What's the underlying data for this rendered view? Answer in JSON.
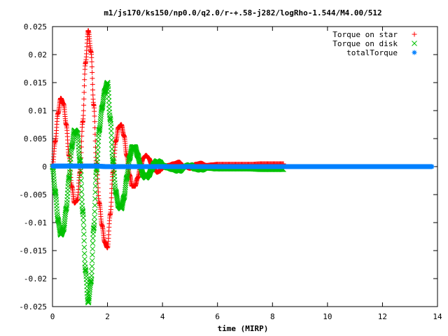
{
  "chart_data": {
    "type": "scatter",
    "title": "m1/js170/ks150/np0.0/q2.0/r-+.58-j282/logRho-1.544/M4.00/512",
    "xlabel": "time (MIRP)",
    "ylabel": "",
    "xlim": [
      0,
      14
    ],
    "ylim": [
      -0.025,
      0.025
    ],
    "x_ticks": [
      "0",
      "2",
      "4",
      "6",
      "8",
      "10",
      "12",
      "14"
    ],
    "y_ticks": [
      "0.025",
      "0.02",
      "0.015",
      "0.01",
      "0.005",
      "0",
      "-0.005",
      "-0.01",
      "-0.015",
      "-0.02",
      "-0.025"
    ],
    "legend_position": "top-right",
    "grid": false,
    "series": [
      {
        "name": "Torque on star",
        "marker": "+",
        "color": "#ff0000",
        "x": [
          0.0,
          0.1,
          0.2,
          0.3,
          0.4,
          0.5,
          0.6,
          0.7,
          0.8,
          0.9,
          1.0,
          1.1,
          1.2,
          1.3,
          1.4,
          1.5,
          1.6,
          1.7,
          1.8,
          1.9,
          2.0,
          2.1,
          2.2,
          2.3,
          2.4,
          2.5,
          2.6,
          2.7,
          2.8,
          2.9,
          3.0,
          3.1,
          3.2,
          3.3,
          3.4,
          3.5,
          3.6,
          3.7,
          3.8,
          3.9,
          4.0,
          4.2,
          4.4,
          4.6,
          4.8,
          5.0,
          5.2,
          5.4,
          5.6,
          5.8,
          6.0,
          6.4,
          6.8,
          7.2,
          7.6,
          8.0,
          8.4
        ],
        "y": [
          0.0,
          0.0045,
          0.0095,
          0.0122,
          0.0112,
          0.0075,
          0.002,
          -0.0035,
          -0.0065,
          -0.006,
          -0.001,
          0.008,
          0.0185,
          0.0243,
          0.0205,
          0.011,
          0.0005,
          -0.0065,
          -0.0105,
          -0.0135,
          -0.0145,
          -0.0085,
          -0.001,
          0.0045,
          0.007,
          0.0075,
          0.0055,
          0.002,
          -0.0015,
          -0.0035,
          -0.0035,
          -0.002,
          0.0,
          0.0015,
          0.002,
          0.0015,
          0.0005,
          -0.0005,
          -0.001,
          -0.0008,
          -0.0002,
          0.0002,
          0.0005,
          0.0008,
          0.0,
          -0.0003,
          0.0004,
          0.0006,
          0.0002,
          0.0003,
          0.0004,
          0.0004,
          0.0004,
          0.0004,
          0.0005,
          0.0005,
          0.0005
        ]
      },
      {
        "name": "Torque on disk",
        "marker": "x",
        "color": "#00c000",
        "x": [
          0.0,
          0.1,
          0.2,
          0.3,
          0.4,
          0.5,
          0.6,
          0.7,
          0.8,
          0.9,
          1.0,
          1.1,
          1.2,
          1.3,
          1.4,
          1.5,
          1.6,
          1.7,
          1.8,
          1.9,
          2.0,
          2.1,
          2.2,
          2.3,
          2.4,
          2.5,
          2.6,
          2.7,
          2.8,
          2.9,
          3.0,
          3.1,
          3.2,
          3.3,
          3.4,
          3.5,
          3.6,
          3.7,
          3.8,
          3.9,
          4.0,
          4.2,
          4.4,
          4.6,
          4.8,
          5.0,
          5.2,
          5.4,
          5.6,
          5.8,
          6.0,
          6.4,
          6.8,
          7.2,
          7.6,
          8.0,
          8.4
        ],
        "y": [
          0.0,
          -0.0045,
          -0.0095,
          -0.0122,
          -0.0112,
          -0.0075,
          -0.002,
          0.0035,
          0.0065,
          0.006,
          0.001,
          -0.008,
          -0.0185,
          -0.0243,
          -0.0205,
          -0.011,
          -0.0005,
          0.0065,
          0.0105,
          0.0135,
          0.015,
          0.0085,
          0.001,
          -0.0045,
          -0.007,
          -0.0075,
          -0.0055,
          -0.002,
          0.0015,
          0.0035,
          0.0035,
          0.002,
          0.0,
          -0.0015,
          -0.002,
          -0.0015,
          -0.0005,
          0.0005,
          0.001,
          0.0008,
          0.0002,
          -0.0002,
          -0.0005,
          -0.0008,
          0.0,
          0.0003,
          -0.0004,
          -0.0006,
          -0.0002,
          -0.0003,
          -0.0004,
          -0.0004,
          -0.0004,
          -0.0004,
          -0.0005,
          -0.0005,
          -0.0005
        ]
      },
      {
        "name": "totalTorque",
        "marker": "*",
        "color": "#0080ff",
        "x": [
          0.0,
          0.5,
          1.0,
          1.5,
          2.0,
          2.5,
          3.0,
          3.5,
          4.0,
          4.5,
          5.0,
          5.5,
          6.0,
          6.5,
          7.0,
          7.5,
          8.0,
          8.5,
          9.0,
          9.5,
          10.0,
          10.5,
          11.0,
          11.5,
          12.0,
          12.5,
          13.0,
          13.5,
          13.8
        ],
        "y": [
          0.0001,
          0.0001,
          0.0001,
          0.0001,
          0.0,
          0.0,
          0.0,
          0.0,
          0.0,
          0.0,
          0.0,
          0.0,
          0.0,
          0.0,
          0.0,
          0.0,
          0.0,
          0.0,
          0.0,
          0.0,
          0.0,
          0.0,
          0.0,
          0.0,
          0.0,
          0.0,
          0.0,
          0.0,
          0.0
        ]
      }
    ]
  }
}
